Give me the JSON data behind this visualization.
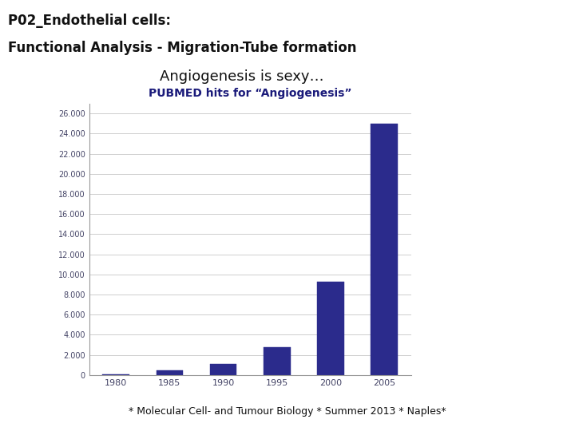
{
  "title_line1": "P02_Endothelial cells:",
  "title_line2": "Functional Analysis - Migration-Tube formation",
  "subtitle": "Angiogenesis is sexy…",
  "chart_title": "PUBMED hits for “Angiogenesis”",
  "categories": [
    "1980",
    "1985",
    "1990",
    "1995",
    "2000",
    "2005"
  ],
  "values": [
    30,
    450,
    1100,
    2800,
    9300,
    25000
  ],
  "bar_color": "#2B2B8C",
  "yticks": [
    0,
    2000,
    4000,
    6000,
    8000,
    10000,
    12000,
    14000,
    16000,
    18000,
    20000,
    22000,
    24000,
    26000
  ],
  "ylim": [
    0,
    27000
  ],
  "background_color": "#FFFFFF",
  "footer_text": "* Molecular Cell- and Tumour Biology * Summer 2013 * Naples*",
  "header_line_color": "#4A6B0A",
  "footer_line_color": "#4A6B0A",
  "title_color": "#111111",
  "subtitle_color": "#111111",
  "chart_title_color": "#1A1A7A",
  "grid_color": "#BBBBBB",
  "tick_label_color": "#444466"
}
